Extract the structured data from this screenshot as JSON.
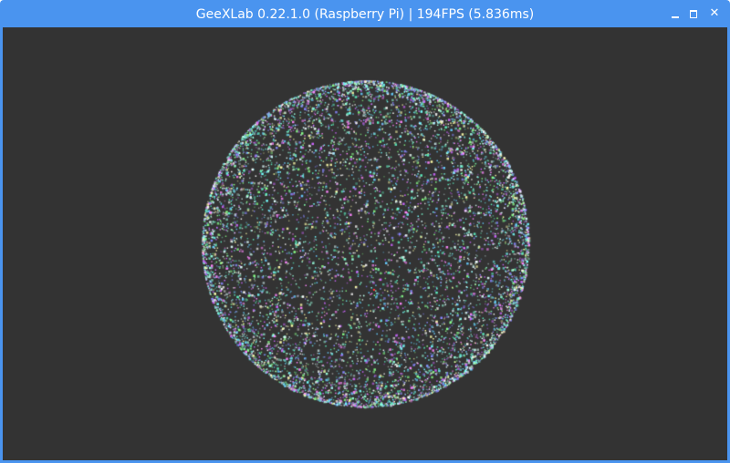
{
  "window": {
    "title": "GeeXLab 0.22.1.0 (Raspberry Pi) | 194FPS (5.836ms)",
    "controls": {
      "minimize": "minimize-icon",
      "maximize": "maximize-icon",
      "close": "close-icon"
    },
    "titlebar_color": "#4a94ef",
    "viewport_color": "#333333"
  }
}
